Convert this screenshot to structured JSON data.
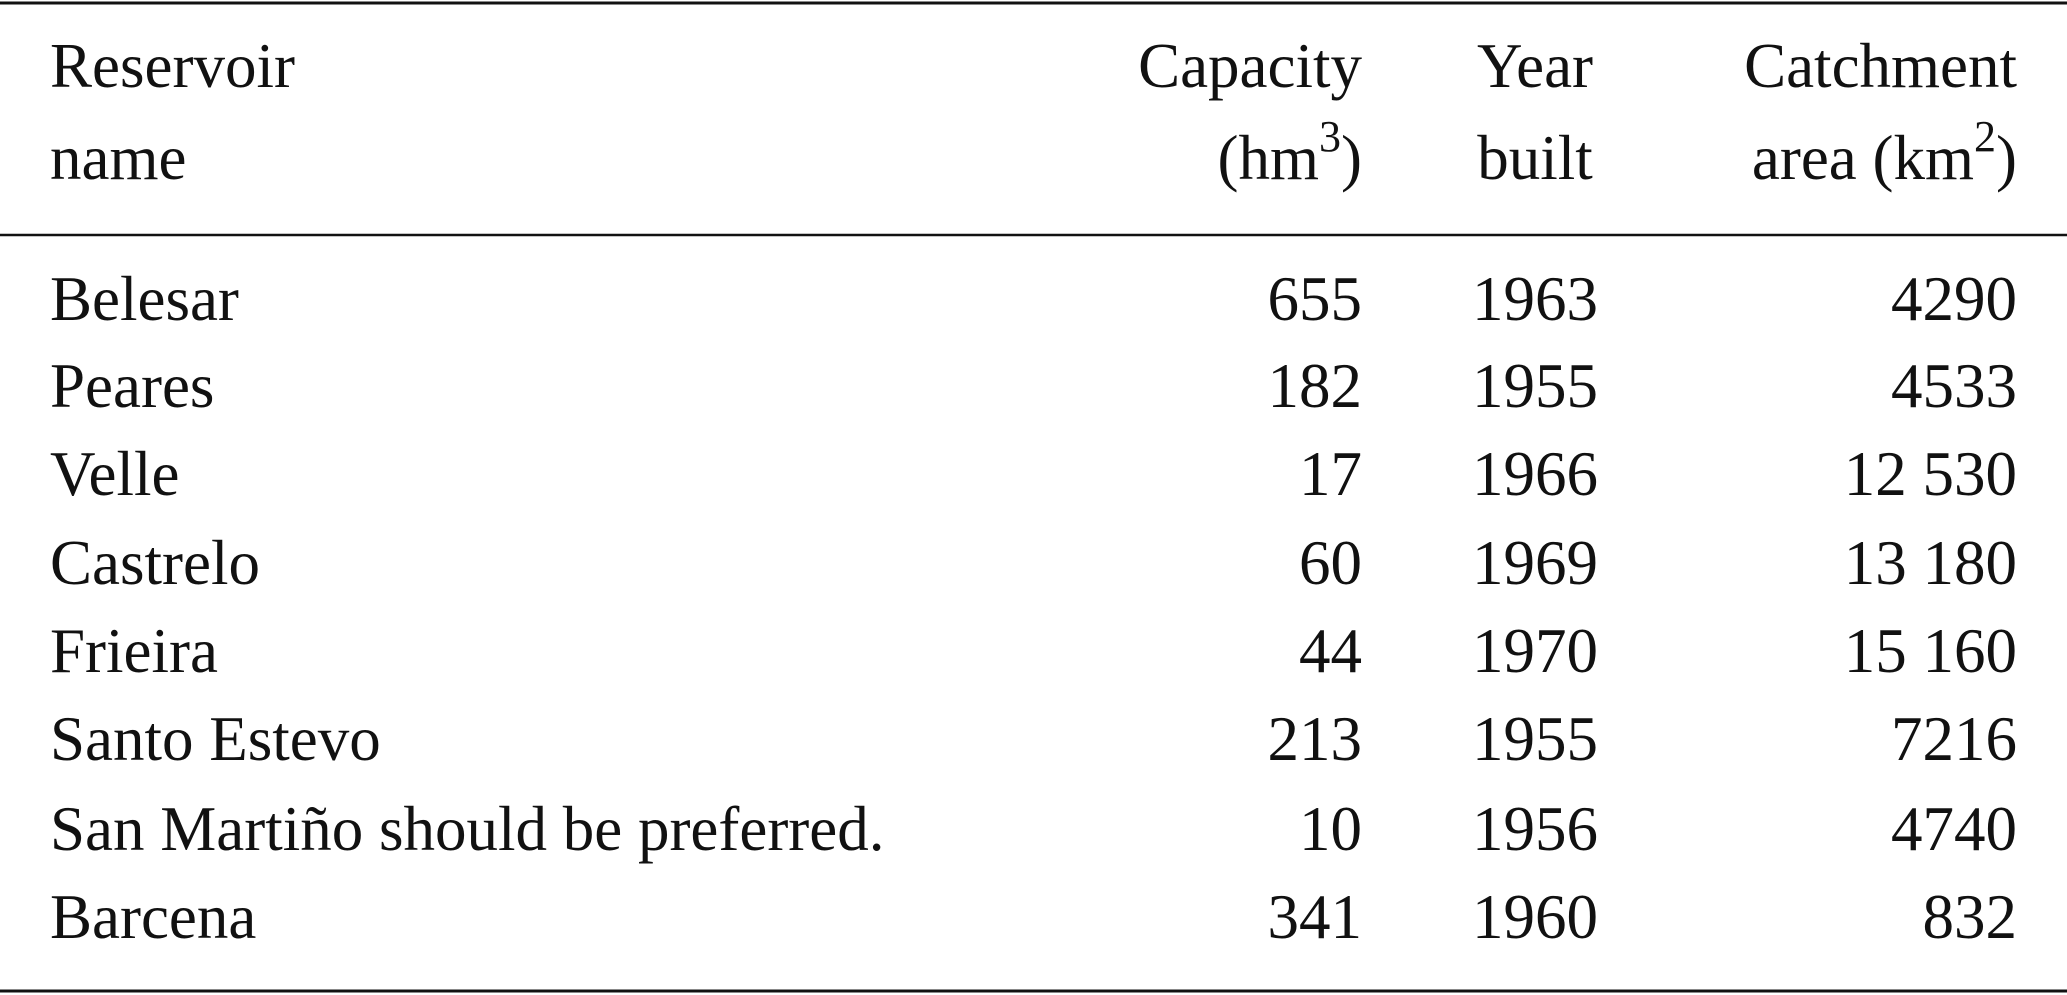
{
  "table": {
    "header": [
      {
        "line1": "Reservoir",
        "line2": "name"
      },
      {
        "line1": "Capacity",
        "line2": "(hm",
        "sup": "3",
        "line2_end": ")"
      },
      {
        "line1": "Year",
        "line2": "built"
      },
      {
        "line1": "Catchment",
        "line2": "area (km",
        "sup": "2",
        "line2_end": ")"
      }
    ],
    "rows": [
      [
        "Belesar",
        "655",
        "1963",
        "4290"
      ],
      [
        "Peares",
        "182",
        "1955",
        "4533"
      ],
      [
        "Velle",
        "17",
        "1966",
        "12 530"
      ],
      [
        "Castrelo",
        "60",
        "1969",
        "13 180"
      ],
      [
        "Frieira",
        "44",
        "1970",
        "15 160"
      ],
      [
        "Santo Estevo",
        "213",
        "1955",
        "7216"
      ],
      [
        "San Martiño should be preferred.",
        "10",
        "1956",
        "4740"
      ],
      [
        "Barcena",
        "341",
        "1960",
        "832"
      ]
    ]
  }
}
